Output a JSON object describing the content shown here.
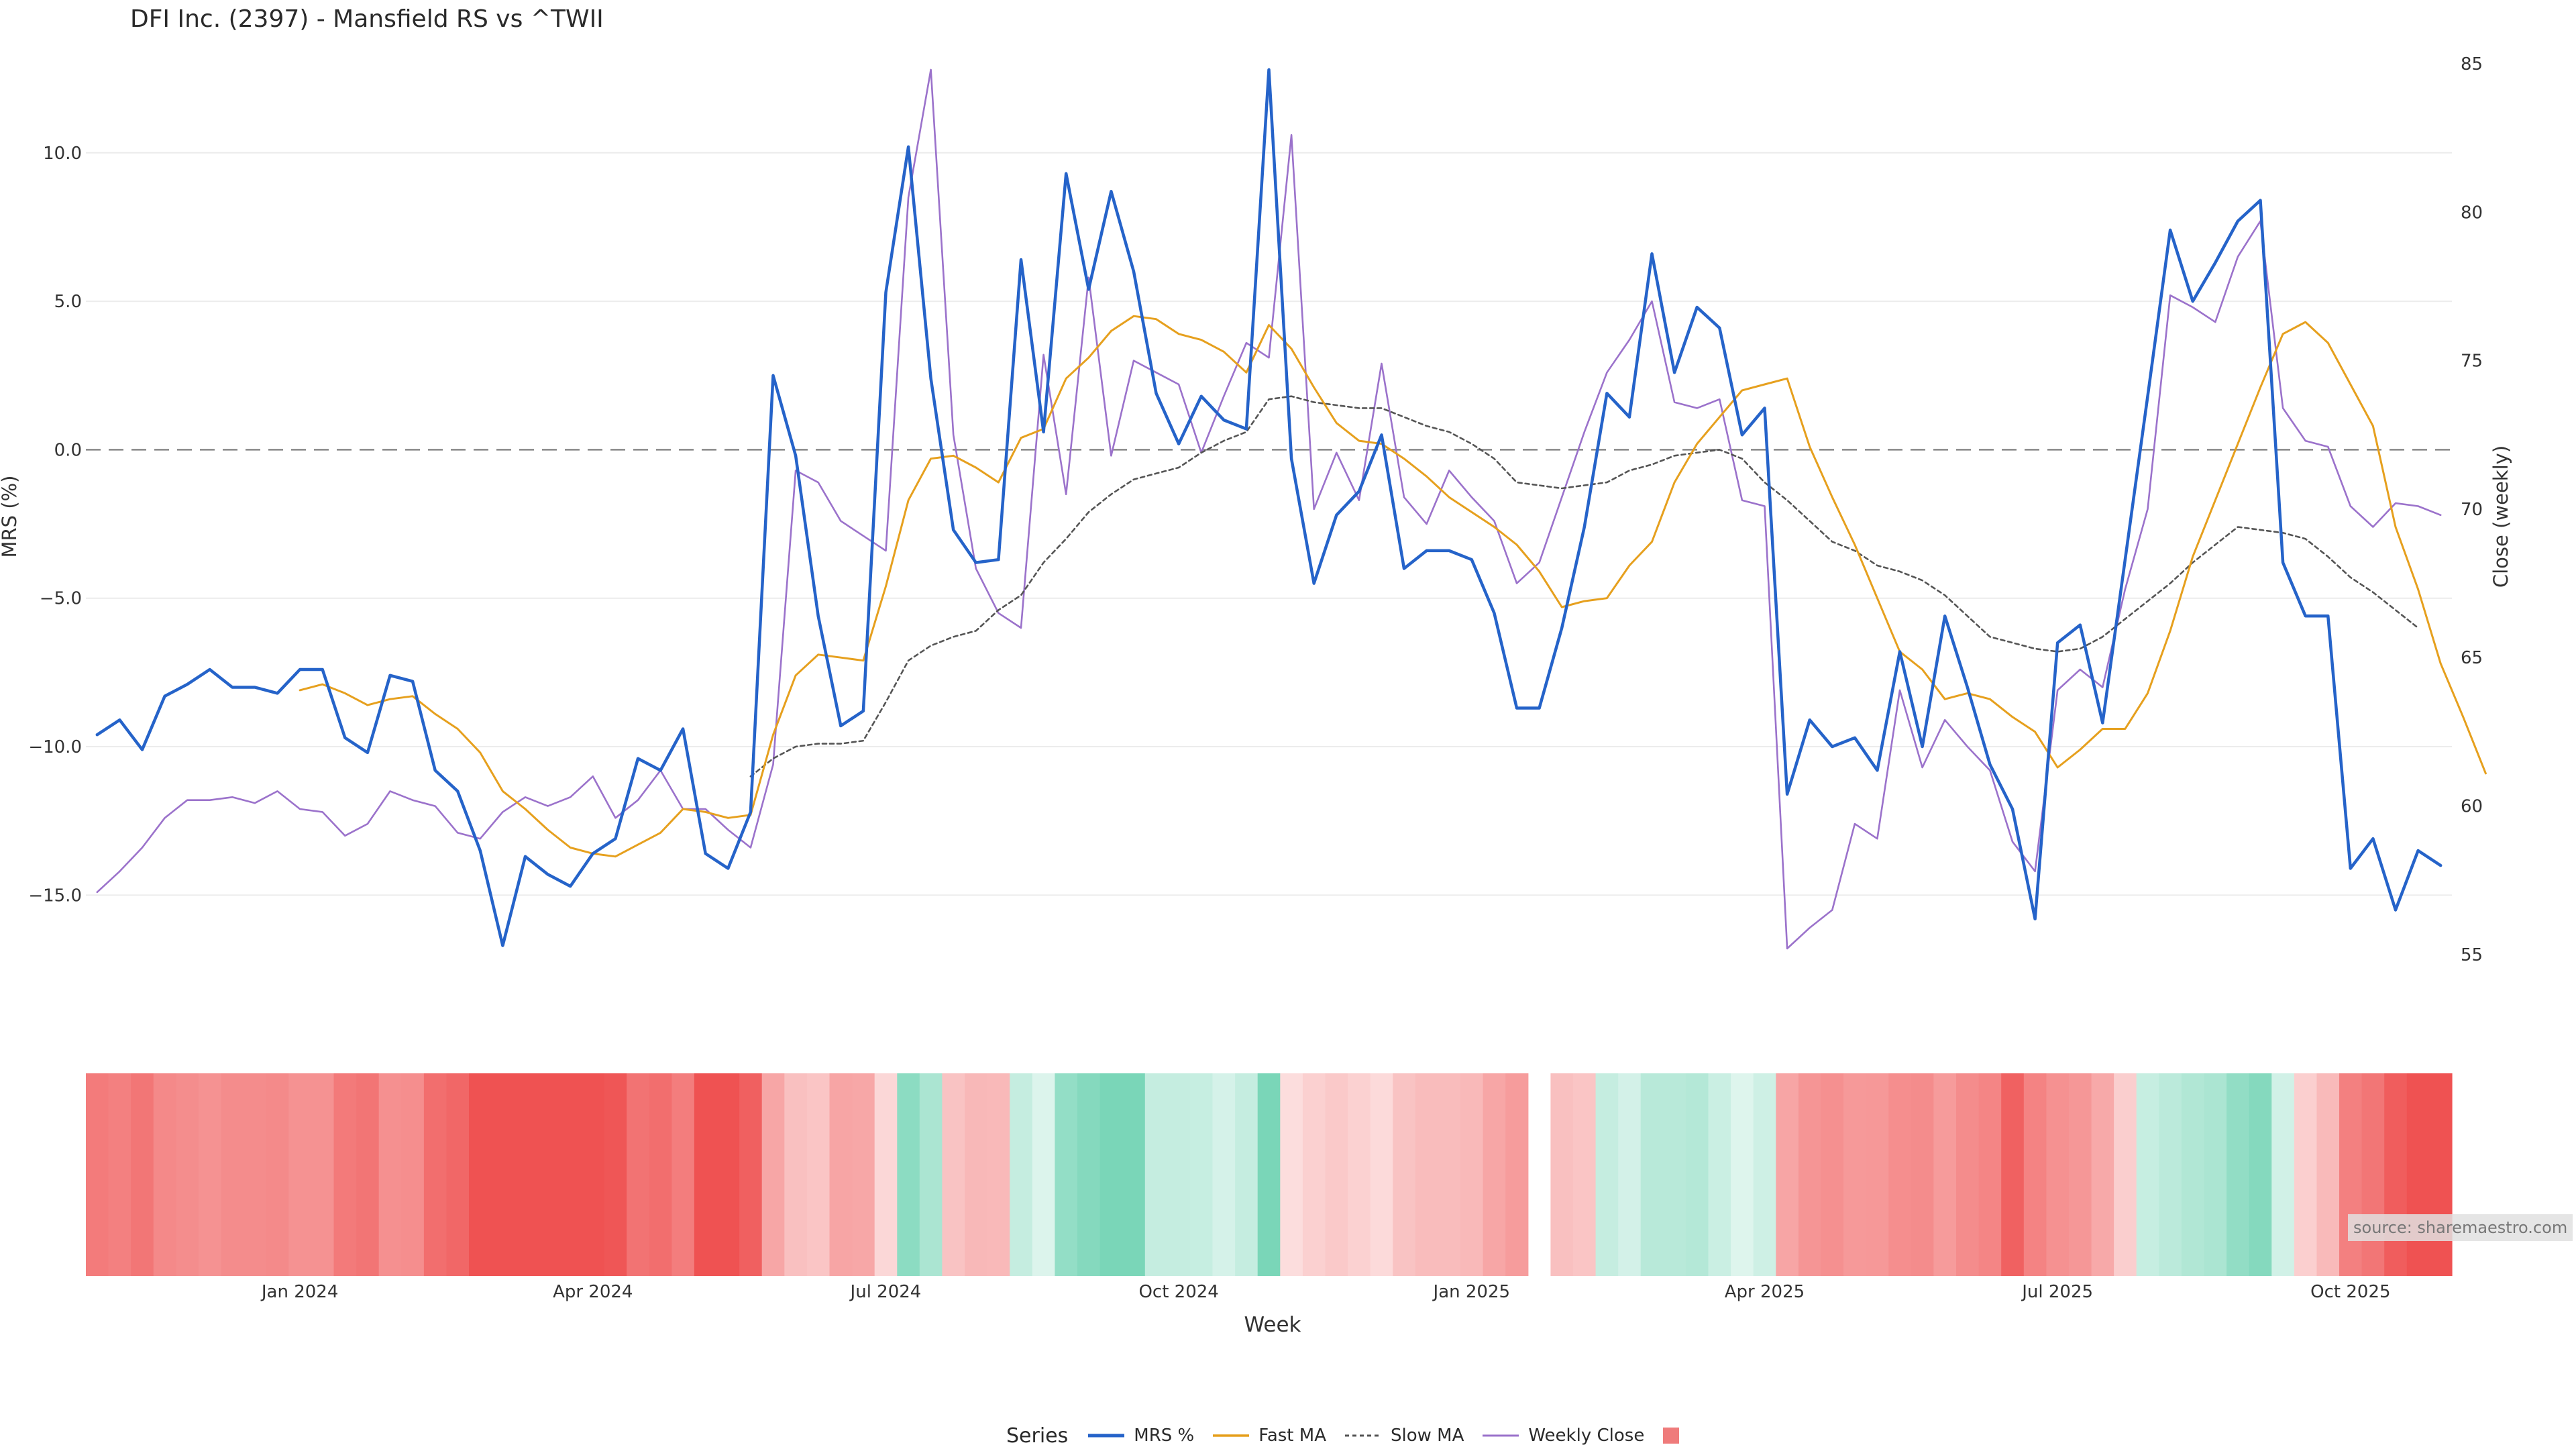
{
  "title": "DFI Inc. (2397) - Mansfield RS vs ^TWII",
  "source": "source: sharemaestro.com",
  "legend": {
    "header": "Series",
    "items": [
      {
        "label": "MRS %",
        "kind": "line",
        "color": "#2563c9"
      },
      {
        "label": "Fast MA",
        "kind": "line",
        "color": "#e6a01e"
      },
      {
        "label": "Slow MA",
        "kind": "dash",
        "color": "#555555"
      },
      {
        "label": "Weekly Close",
        "kind": "line",
        "color": "#9b72cb"
      },
      {
        "label": "",
        "kind": "swatch",
        "color": "#ef7b7b"
      }
    ]
  },
  "chart_data": {
    "type": "line",
    "title": "DFI Inc. (2397) - Mansfield RS vs ^TWII",
    "xlabel": "Week",
    "ylabel": "MRS (%)",
    "y2label": "Close (weekly)",
    "ylim": [
      -17.5,
      13
    ],
    "y2lim": [
      54.5,
      85
    ],
    "yticks": [
      10,
      5,
      0,
      -5,
      -10,
      -15
    ],
    "ytick_labels": [
      "10.0",
      "5.0",
      "0.0",
      "−5.0",
      "−10.0",
      "−15.0"
    ],
    "y2ticks": [
      85,
      80,
      75,
      70,
      65,
      60,
      55
    ],
    "x_ticks": [
      {
        "label": "Jan 2024",
        "index": 9
      },
      {
        "label": "Apr 2024",
        "index": 22
      },
      {
        "label": "Jul 2024",
        "index": 35
      },
      {
        "label": "Oct 2024",
        "index": 48
      },
      {
        "label": "Jan 2025",
        "index": 61
      },
      {
        "label": "Apr 2025",
        "index": 74
      },
      {
        "label": "Jul 2025",
        "index": 87
      },
      {
        "label": "Oct 2025",
        "index": 100
      }
    ],
    "weeks": 105,
    "heatmap_gap_after_index": 64,
    "series": [
      {
        "name": "MRS %",
        "axis": "y",
        "color": "#2563c9",
        "width": 4.5,
        "values": [
          -9.6,
          -9.1,
          -10.1,
          -8.3,
          -7.9,
          -7.4,
          -8.0,
          -8.0,
          -8.2,
          -7.4,
          -7.4,
          -9.7,
          -10.2,
          -7.6,
          -7.8,
          -10.8,
          -11.5,
          -13.5,
          -16.7,
          -13.7,
          -14.3,
          -14.7,
          -13.6,
          -13.1,
          -10.4,
          -10.8,
          -9.4,
          -13.6,
          -14.1,
          -12.2,
          2.5,
          -0.2,
          -5.6,
          -9.3,
          -8.8,
          5.3,
          10.2,
          2.4,
          -2.7,
          -3.8,
          -3.7,
          6.4,
          0.6,
          9.3,
          5.4,
          8.7,
          6.0,
          1.9,
          0.2,
          1.8,
          1.0,
          0.7,
          12.8,
          -0.3,
          -4.5,
          -2.2,
          -1.4,
          0.5,
          -4.0,
          -3.4,
          -3.4,
          -3.7,
          -5.5,
          -8.7,
          -8.7,
          -6.0,
          -2.6,
          1.9,
          1.1,
          6.6,
          2.6,
          4.8,
          4.1,
          0.5,
          1.4,
          -11.6,
          -9.1,
          -10.0,
          -9.7,
          -10.8,
          -6.8,
          -10.0,
          -5.6,
          -8.0,
          -10.6,
          -12.1,
          -15.8,
          -6.5,
          -5.9,
          -9.2,
          -3.7,
          1.8,
          7.4,
          5.0,
          6.3,
          7.7,
          8.4,
          -3.8,
          -5.6,
          -5.6,
          -14.1,
          -13.1,
          -15.5,
          -13.5,
          -14.0
        ]
      },
      {
        "name": "Fast MA",
        "axis": "y",
        "color": "#e6a01e",
        "width": 3,
        "start": 9,
        "values": [
          -8.1,
          -7.9,
          -8.2,
          -8.6,
          -8.4,
          -8.3,
          -8.9,
          -9.4,
          -10.2,
          -11.5,
          -12.1,
          -12.8,
          -13.4,
          -13.6,
          -13.7,
          -13.3,
          -12.9,
          -12.1,
          -12.2,
          -12.4,
          -12.3,
          -9.6,
          -7.6,
          -6.9,
          -7.0,
          -7.1,
          -4.6,
          -1.7,
          -0.3,
          -0.2,
          -0.6,
          -1.1,
          0.4,
          0.7,
          2.4,
          3.1,
          4.0,
          4.5,
          4.4,
          3.9,
          3.7,
          3.3,
          2.6,
          4.2,
          3.4,
          2.1,
          0.9,
          0.3,
          0.2,
          -0.3,
          -0.9,
          -1.6,
          -2.1,
          -2.6,
          -3.2,
          -4.1,
          -5.3,
          -5.1,
          -5.0,
          -3.9,
          -3.1,
          -1.1,
          0.2,
          1.1,
          2.0,
          2.2,
          2.4,
          0.1,
          -1.6,
          -3.2,
          -5.0,
          -6.8,
          -7.4,
          -8.4,
          -8.2,
          -8.4,
          -9.0,
          -9.5,
          -10.7,
          -10.1,
          -9.4,
          -9.4,
          -8.2,
          -6.1,
          -3.6,
          -1.7,
          0.2,
          2.1,
          3.9,
          4.3,
          3.6,
          2.2,
          0.8,
          -2.6,
          -4.7,
          -7.2,
          -9.0,
          -10.9
        ]
      },
      {
        "name": "Slow MA",
        "axis": "y",
        "color": "#555555",
        "width": 2.6,
        "dash": "6,5",
        "start": 29,
        "values": [
          -11.0,
          -10.4,
          -10.0,
          -9.9,
          -9.9,
          -9.8,
          -8.5,
          -7.1,
          -6.6,
          -6.3,
          -6.1,
          -5.4,
          -4.9,
          -3.8,
          -3.0,
          -2.1,
          -1.5,
          -1.0,
          -0.8,
          -0.6,
          -0.1,
          0.3,
          0.6,
          1.7,
          1.8,
          1.6,
          1.5,
          1.4,
          1.4,
          1.1,
          0.8,
          0.6,
          0.2,
          -0.3,
          -1.1,
          -1.2,
          -1.3,
          -1.2,
          -1.1,
          -0.7,
          -0.5,
          -0.2,
          -0.1,
          0.0,
          -0.3,
          -1.1,
          -1.7,
          -2.4,
          -3.1,
          -3.4,
          -3.9,
          -4.1,
          -4.4,
          -4.9,
          -5.6,
          -6.3,
          -6.5,
          -6.7,
          -6.8,
          -6.7,
          -6.3,
          -5.7,
          -5.1,
          -4.5,
          -3.8,
          -3.2,
          -2.6,
          -2.7,
          -2.8,
          -3.0,
          -3.6,
          -4.3,
          -4.8,
          -5.4,
          -6.0
        ]
      },
      {
        "name": "Weekly Close",
        "axis": "y2",
        "color": "#9b72cb",
        "width": 2.6,
        "values": [
          57.1,
          57.8,
          58.6,
          59.6,
          60.2,
          60.2,
          60.3,
          60.1,
          60.5,
          59.9,
          59.8,
          59.0,
          59.4,
          60.5,
          60.2,
          60.0,
          59.1,
          58.9,
          59.8,
          60.3,
          60.0,
          60.3,
          61.0,
          59.6,
          60.2,
          61.2,
          59.9,
          59.9,
          59.2,
          58.6,
          61.4,
          71.3,
          70.9,
          69.6,
          69.1,
          68.6,
          80.5,
          84.8,
          72.5,
          68.0,
          66.5,
          66.0,
          75.2,
          70.5,
          77.8,
          71.8,
          75.0,
          74.6,
          74.2,
          71.9,
          73.8,
          75.6,
          75.1,
          82.6,
          70.0,
          71.9,
          70.3,
          74.9,
          70.4,
          69.5,
          71.3,
          70.4,
          69.6,
          67.5,
          68.2,
          70.4,
          72.6,
          74.6,
          75.7,
          77.0,
          73.6,
          73.4,
          73.7,
          70.3,
          70.1,
          55.2,
          55.9,
          56.5,
          59.4,
          58.9,
          63.9,
          61.3,
          62.9,
          62.0,
          61.2,
          58.8,
          57.8,
          63.9,
          64.6,
          64.0,
          67.3,
          70.0,
          77.2,
          76.8,
          76.3,
          78.5,
          79.7,
          73.4,
          72.3,
          72.1,
          70.1,
          69.4,
          70.2,
          70.1,
          69.8
        ]
      }
    ],
    "heatmap": [
      -9.6,
      -9.1,
      -10.1,
      -8.3,
      -7.9,
      -7.4,
      -8.0,
      -8.0,
      -8.2,
      -7.4,
      -7.4,
      -9.7,
      -10.2,
      -7.6,
      -7.8,
      -10.8,
      -11.5,
      -13.5,
      -16.7,
      -13.7,
      -14.3,
      -14.7,
      -13.6,
      -13.1,
      -10.4,
      -10.8,
      -9.4,
      -13.6,
      -14.1,
      -12.2,
      -5.5,
      -3.0,
      -2.6,
      -5.6,
      -5.4,
      -0.8,
      5.0,
      3.3,
      -2.7,
      -3.8,
      -3.7,
      1.9,
      0.6,
      4.6,
      5.4,
      6.7,
      6.0,
      1.9,
      1.9,
      1.8,
      1.0,
      1.9,
      6.1,
      -0.3,
      -1.5,
      -2.2,
      -1.4,
      -0.6,
      -2.7,
      -3.4,
      -3.4,
      -3.7,
      -5.5,
      -6.5,
      -6.0,
      -3.0,
      -2.6,
      1.9,
      1.1,
      2.6,
      2.6,
      2.8,
      1.6,
      0.5,
      1.4,
      -5.6,
      -7.1,
      -7.6,
      -6.7,
      -6.8,
      -7.8,
      -8.0,
      -6.6,
      -8.0,
      -8.6,
      -12.1,
      -8.8,
      -7.5,
      -6.9,
      -5.2,
      -1.7,
      1.8,
      2.4,
      3.0,
      3.3,
      4.7,
      5.4,
      1.2,
      -1.6,
      -3.6,
      -9.1,
      -10.1,
      -12.5,
      -13.5,
      -14.0
    ]
  }
}
